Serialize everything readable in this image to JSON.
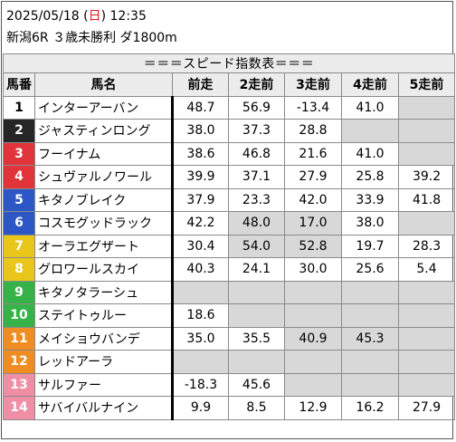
{
  "header": {
    "date_prefix": "2025/05/18 (",
    "weekday": "日",
    "date_suffix": ") 12:35",
    "race": "新潟6R ３歳未勝利 ダ1800m"
  },
  "table": {
    "banner": "＝＝＝スピード指数表＝＝＝",
    "columns": [
      "馬番",
      "馬名",
      "前走",
      "2走前",
      "3走前",
      "4走前",
      "5走前"
    ],
    "rows": [
      {
        "num": "1",
        "name": "インターアーバン",
        "r1": "48.7",
        "r2": "56.9",
        "r3": "-13.4",
        "r4": "41.0",
        "r5": ""
      },
      {
        "num": "2",
        "name": "ジャスティンロング",
        "r1": "38.0",
        "r2": "37.3",
        "r3": "28.8",
        "r4": "",
        "r5": ""
      },
      {
        "num": "3",
        "name": "フーイナム",
        "r1": "38.6",
        "r2": "46.8",
        "r3": "21.6",
        "r4": "41.0",
        "r5": ""
      },
      {
        "num": "4",
        "name": "シュヴァルノワール",
        "r1": "39.9",
        "r2": "37.1",
        "r3": "27.9",
        "r4": "25.8",
        "r5": "39.2"
      },
      {
        "num": "5",
        "name": "キタノブレイク",
        "r1": "37.9",
        "r2": "23.3",
        "r3": "42.0",
        "r4": "33.9",
        "r5": "41.8"
      },
      {
        "num": "6",
        "name": "コスモグッドラック",
        "r1": "42.2",
        "r2": "48.0",
        "r3": "17.0",
        "r4": "38.0",
        "r5": ""
      },
      {
        "num": "7",
        "name": "オーラエグザート",
        "r1": "30.4",
        "r2": "54.0",
        "r3": "52.8",
        "r4": "19.7",
        "r5": "28.3"
      },
      {
        "num": "8",
        "name": "グロワールスカイ",
        "r1": "40.3",
        "r2": "24.1",
        "r3": "30.0",
        "r4": "25.6",
        "r5": "5.4"
      },
      {
        "num": "9",
        "name": "キタノタラーシュ",
        "r1": "",
        "r2": "",
        "r3": "",
        "r4": "",
        "r5": ""
      },
      {
        "num": "10",
        "name": "ステイトゥルー",
        "r1": "18.6",
        "r2": "",
        "r3": "",
        "r4": "",
        "r5": ""
      },
      {
        "num": "11",
        "name": "メイショウバンデ",
        "r1": "35.0",
        "r2": "35.5",
        "r3": "40.9",
        "r4": "45.3",
        "r5": ""
      },
      {
        "num": "12",
        "name": "レッドアーラ",
        "r1": "",
        "r2": "",
        "r3": "",
        "r4": "",
        "r5": ""
      },
      {
        "num": "13",
        "name": "サルファー",
        "r1": "-18.3",
        "r2": "45.6",
        "r3": "",
        "r4": "",
        "r5": ""
      },
      {
        "num": "14",
        "name": "サバイバルナイン",
        "r1": "9.9",
        "r2": "8.5",
        "r3": "12.9",
        "r4": "16.2",
        "r5": "27.9"
      }
    ],
    "gray_cells": [
      [
        "r5"
      ],
      [
        "r4",
        "r5"
      ],
      [
        "r5"
      ],
      [],
      [],
      [
        "r2",
        "r3",
        "r5"
      ],
      [
        "r2",
        "r3"
      ],
      [],
      [
        "r1",
        "r2",
        "r3",
        "r4",
        "r5"
      ],
      [
        "r2",
        "r3",
        "r4",
        "r5"
      ],
      [
        "r3",
        "r4",
        "r5"
      ],
      [
        "r1",
        "r2",
        "r3",
        "r4",
        "r5"
      ],
      [
        "r3",
        "r4",
        "r5"
      ],
      []
    ]
  }
}
